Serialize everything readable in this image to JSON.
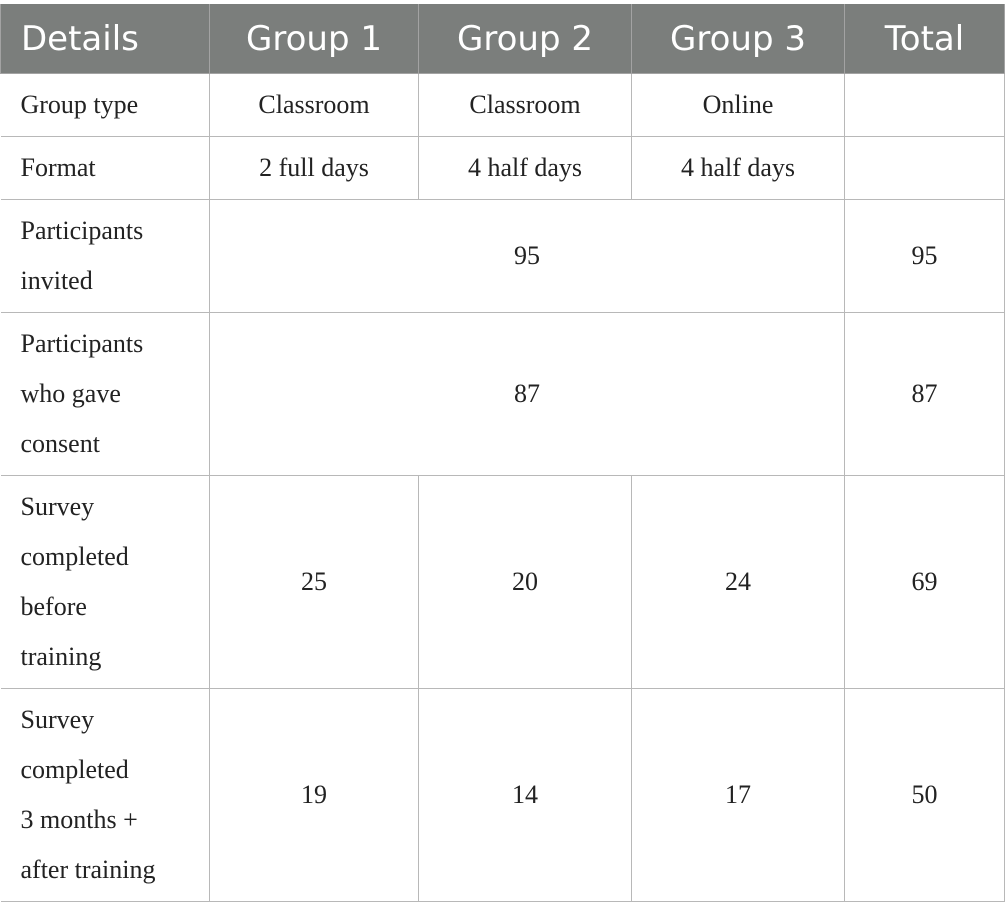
{
  "table": {
    "headers": [
      "Details",
      "Group 1",
      "Group 2",
      "Group 3",
      "Total"
    ],
    "rows": {
      "group_type": {
        "label": "Group type",
        "g1": "Classroom",
        "g2": "Classroom",
        "g3": "Online",
        "total": ""
      },
      "format": {
        "label": "Format",
        "g1": "2 full days",
        "g2": "4 half days",
        "g3": "4 half days",
        "total": ""
      },
      "invited": {
        "label_lines": [
          "Participants",
          "invited"
        ],
        "merged": "95",
        "total": "95"
      },
      "consent": {
        "label_lines": [
          "Participants",
          "who gave",
          "consent"
        ],
        "merged": "87",
        "total": "87"
      },
      "survey_before": {
        "label_lines": [
          "Survey",
          "completed",
          "before",
          "training"
        ],
        "g1": "25",
        "g2": "20",
        "g3": "24",
        "total": "69"
      },
      "survey_after": {
        "label_lines": [
          "Survey",
          "completed",
          "3 months +",
          "after training"
        ],
        "g1": "19",
        "g2": "14",
        "g3": "17",
        "total": "50"
      }
    }
  }
}
